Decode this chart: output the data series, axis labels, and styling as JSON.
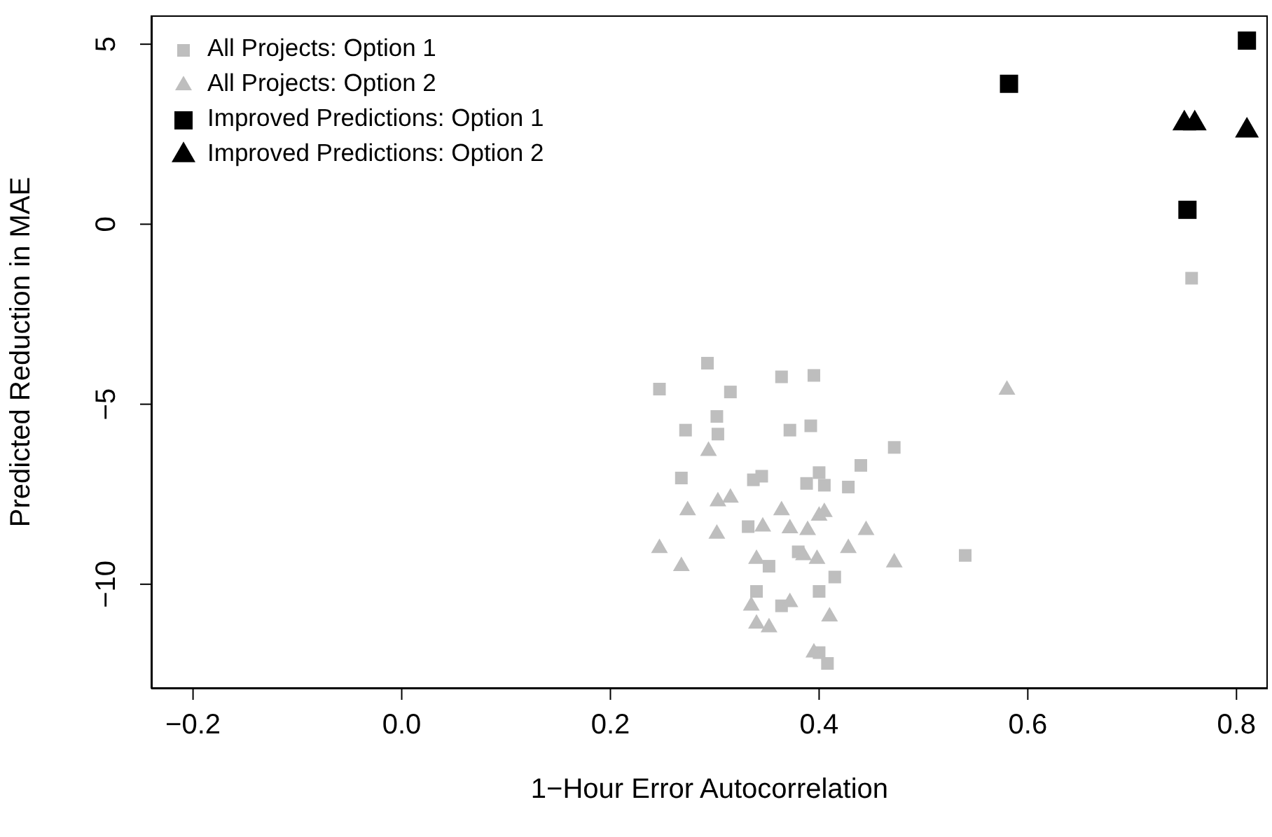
{
  "chart_data": {
    "type": "scatter",
    "xlabel": "1−Hour Error Autocorrelation",
    "ylabel": "Predicted Reduction in MAE",
    "xlim": [
      -0.24,
      0.83
    ],
    "ylim": [
      -12.9,
      5.8
    ],
    "xticks": [
      {
        "value": -0.2,
        "label": "−0.2"
      },
      {
        "value": 0,
        "label": "0.0"
      },
      {
        "value": 0.2,
        "label": "0.2"
      },
      {
        "value": 0.4,
        "label": "0.4"
      },
      {
        "value": 0.6,
        "label": "0.6"
      },
      {
        "value": 0.8,
        "label": "0.8"
      }
    ],
    "yticks": [
      {
        "value": -10,
        "label": "−10"
      },
      {
        "value": -5,
        "label": "−5"
      },
      0,
      5
    ],
    "grid": false,
    "legend": "top left",
    "series": [
      {
        "name": "All Projects: Option 1",
        "color": "#bebebe",
        "marker": "square",
        "x": [
          0.293,
          0.364,
          0.247,
          0.315,
          0.302,
          0.272,
          0.303,
          0.372,
          0.392,
          0.268,
          0.337,
          0.345,
          0.388,
          0.332,
          0.395,
          0.44,
          0.472,
          0.405,
          0.4,
          0.428,
          0.54,
          0.38,
          0.352,
          0.34,
          0.415,
          0.4,
          0.364,
          0.4,
          0.408,
          0.757
        ],
        "values": [
          -3.86,
          -4.24,
          -4.58,
          -4.66,
          -5.34,
          -5.72,
          -5.83,
          -5.72,
          -5.6,
          -7.05,
          -7.1,
          -7.0,
          -7.2,
          -8.4,
          -4.2,
          -6.7,
          -6.2,
          -7.25,
          -6.9,
          -7.3,
          -9.2,
          -9.1,
          -9.5,
          -10.2,
          -9.8,
          -10.2,
          -10.6,
          -11.9,
          -12.2,
          -1.5
        ]
      },
      {
        "name": "All Projects: Option 2",
        "color": "#bebebe",
        "marker": "triangle",
        "x": [
          0.294,
          0.274,
          0.303,
          0.315,
          0.364,
          0.346,
          0.372,
          0.389,
          0.302,
          0.247,
          0.268,
          0.34,
          0.428,
          0.445,
          0.472,
          0.41,
          0.372,
          0.34,
          0.352,
          0.395,
          0.385,
          0.4,
          0.405,
          0.335,
          0.58,
          0.398
        ],
        "values": [
          -6.3,
          -7.95,
          -7.7,
          -7.6,
          -7.95,
          -8.4,
          -8.45,
          -8.5,
          -8.6,
          -9.0,
          -9.5,
          -9.3,
          -9.0,
          -8.5,
          -9.4,
          -10.9,
          -10.5,
          -11.1,
          -11.2,
          -11.9,
          -9.2,
          -8.1,
          -8.0,
          -10.6,
          -4.6,
          -9.3
        ]
      },
      {
        "name": "Improved Predictions: Option 1",
        "color": "#000000",
        "marker": "square",
        "x": [
          0.582,
          0.81,
          0.753
        ],
        "values": [
          3.9,
          5.1,
          0.4
        ]
      },
      {
        "name": "Improved Predictions: Option 2",
        "color": "#000000",
        "marker": "triangle",
        "x": [
          0.75,
          0.76,
          0.81
        ],
        "values": [
          2.8,
          2.8,
          2.6
        ]
      }
    ]
  }
}
